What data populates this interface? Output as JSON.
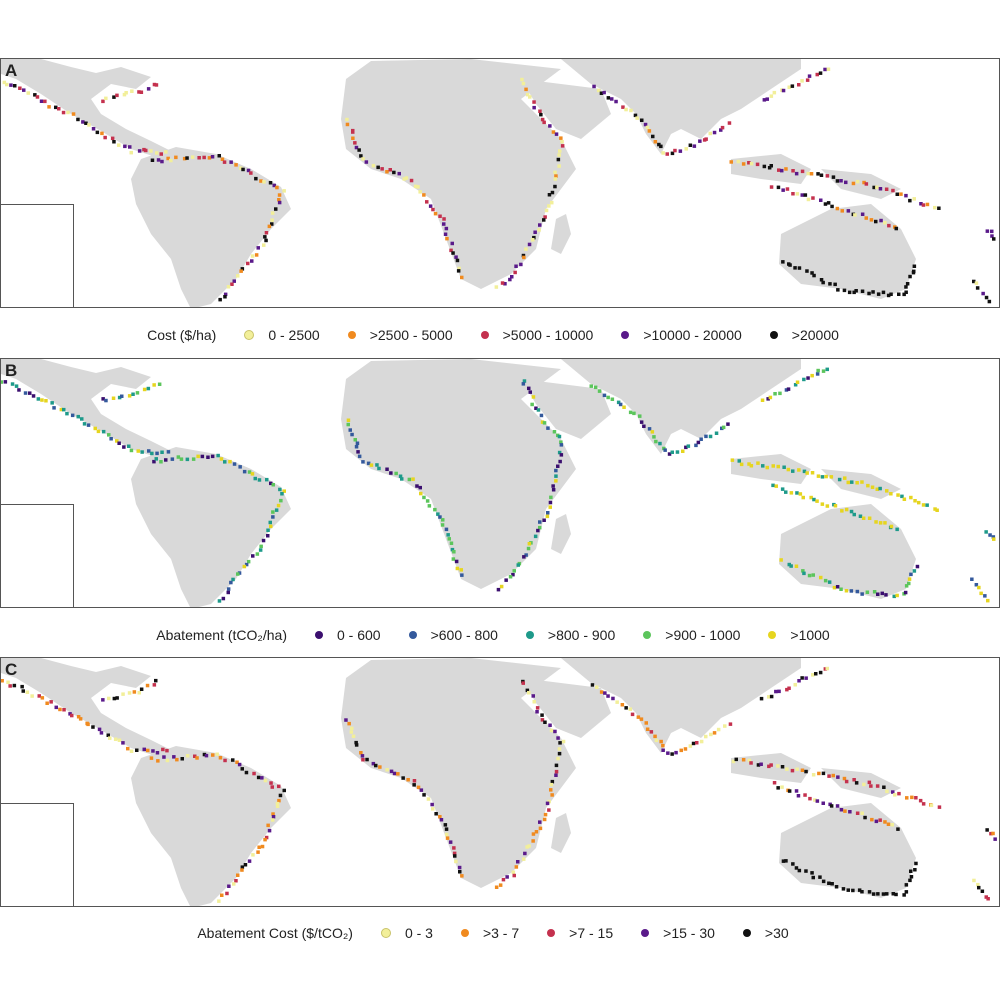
{
  "panels": [
    {
      "letter": "A",
      "legend_title": "Cost ($/ha)",
      "classes": [
        {
          "label": "0 - 2500",
          "color": "#f2ef9a"
        },
        {
          "label": ">2500 - 5000",
          "color": "#f08a1f"
        },
        {
          "label": ">5000 - 10000",
          "color": "#c4314e"
        },
        {
          "label": ">10000 - 20000",
          "color": "#5a1a8a"
        },
        {
          "label": ">20000",
          "color": "#111111"
        }
      ]
    },
    {
      "letter": "B",
      "legend_title": "Abatement (tCO₂/ha)",
      "classes": [
        {
          "label": "0 - 600",
          "color": "#3b0f6f"
        },
        {
          "label": ">600 - 800",
          "color": "#34599c"
        },
        {
          "label": ">800 - 900",
          "color": "#1e9a8a"
        },
        {
          "label": ">900 - 1000",
          "color": "#5cc55c"
        },
        {
          "label": ">1000",
          "color": "#e6d51f"
        }
      ]
    },
    {
      "letter": "C",
      "legend_title": "Abatement Cost ($/tCO₂)",
      "classes": [
        {
          "label": "0 - 3",
          "color": "#f2ef9a"
        },
        {
          "label": ">3 - 7",
          "color": "#f08a1f"
        },
        {
          "label": ">7 - 15",
          "color": "#c4314e"
        },
        {
          "label": ">15 - 30",
          "color": "#5a1a8a"
        },
        {
          "label": ">30",
          "color": "#111111"
        }
      ]
    }
  ],
  "land_color": "#d9d9d9"
}
